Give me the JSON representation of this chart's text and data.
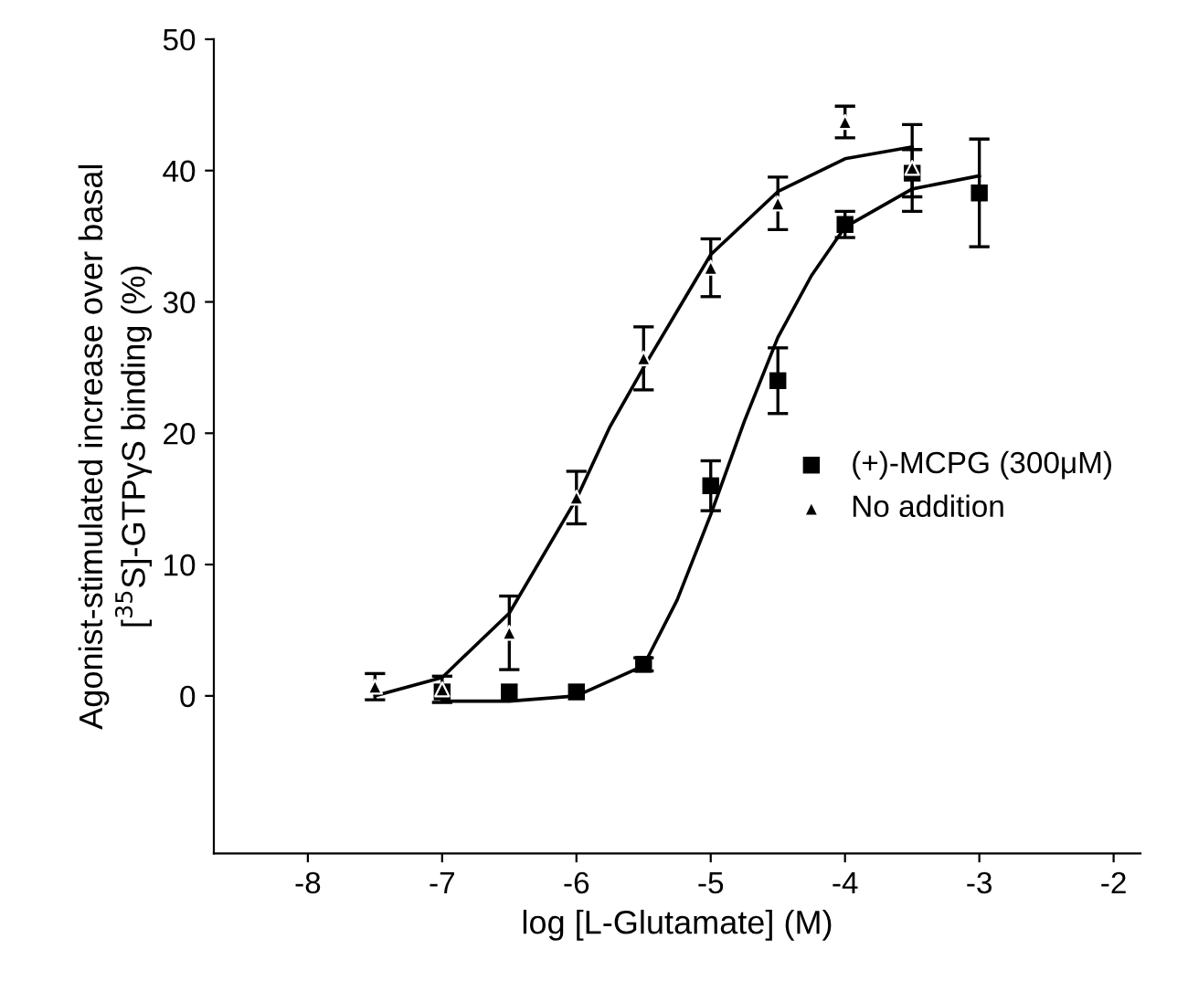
{
  "chart_data": {
    "type": "scatter",
    "xlabel": "log [L-Glutamate] (M)",
    "ylabel": "Agonist-stimulated increase over basal\n[$^{35}$S]-GTPγS binding (%)",
    "xlim": [
      -8.7,
      -1.8
    ],
    "xticks": [
      -8,
      -7,
      -6,
      -5,
      -4,
      -3,
      -2
    ],
    "ylim": [
      -12,
      50
    ],
    "yticks": [
      0,
      10,
      20,
      30,
      40,
      50
    ],
    "grid": false,
    "legend": "right",
    "series": [
      {
        "name": "(+)-MCPG (300μM)",
        "marker": "square",
        "color": "#000000",
        "x": [
          -7,
          -6.5,
          -6,
          -5.5,
          -5,
          -4.5,
          -4,
          -3.5,
          -3
        ],
        "values": [
          0.3,
          0.3,
          0.3,
          2.4,
          16.0,
          24.0,
          35.9,
          39.8,
          38.3
        ],
        "errors": [
          null,
          null,
          null,
          0.5,
          1.9,
          2.5,
          1.0,
          1.8,
          4.1
        ]
      },
      {
        "name": "No addition",
        "marker": "triangle",
        "color": "#000000",
        "x": [
          -7.5,
          -7,
          -6.5,
          -6,
          -5.5,
          -5,
          -4.5,
          -4,
          -3.5
        ],
        "values": [
          0.7,
          0.5,
          4.8,
          15.1,
          25.7,
          32.6,
          37.5,
          43.7,
          40.2
        ],
        "errors": [
          1.0,
          1.0,
          2.8,
          2.0,
          2.4,
          2.2,
          2.0,
          1.2,
          3.3
        ]
      },
      {
        "type": "line",
        "line_style": "solid",
        "color": "#000000",
        "x": [
          -7,
          -6.5,
          -6,
          -5.5,
          -5.25,
          -5,
          -4.75,
          -4.5,
          -4.25,
          -4,
          -3.5,
          -3
        ],
        "values": [
          -0.4,
          -0.4,
          0,
          2.3,
          7.3,
          13.8,
          20.9,
          27.3,
          32,
          35.7,
          38.6,
          39.6
        ]
      },
      {
        "type": "line",
        "line_style": "solid",
        "color": "#000000",
        "x": [
          -7.5,
          -7,
          -6.5,
          -6,
          -5.75,
          -5.5,
          -5,
          -4.5,
          -4,
          -3.5
        ],
        "values": [
          0,
          1.4,
          6.3,
          15,
          20.5,
          25,
          33.6,
          38.4,
          40.9,
          41.8
        ]
      }
    ]
  }
}
